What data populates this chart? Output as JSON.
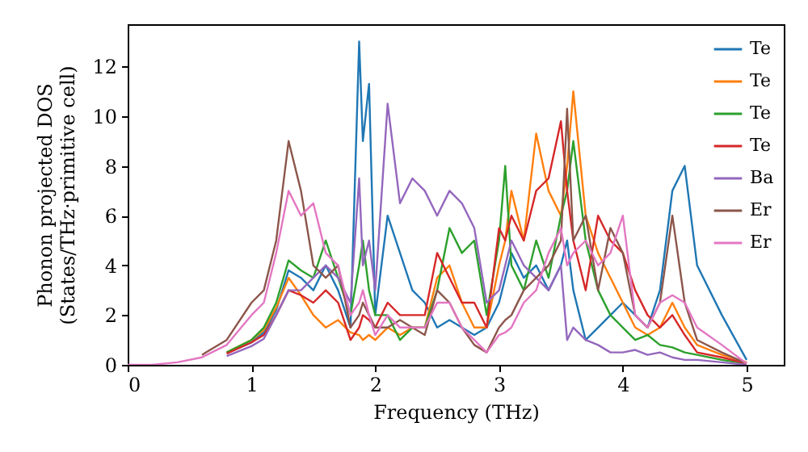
{
  "chart_data": {
    "type": "line",
    "xlabel": "Frequency (THz)",
    "ylabel": "Phonon projected DOS\n(States/THz·primitive cell)",
    "xlim": [
      0,
      5.3
    ],
    "ylim": [
      0,
      13.7
    ],
    "xticks": [
      0,
      1,
      2,
      3,
      4,
      5
    ],
    "yticks": [
      0,
      2,
      4,
      6,
      8,
      10,
      12
    ],
    "legend": "top right",
    "x": [
      0,
      0.2,
      0.4,
      0.6,
      0.8,
      1.0,
      1.1,
      1.2,
      1.3,
      1.4,
      1.5,
      1.6,
      1.7,
      1.8,
      1.87,
      1.9,
      1.95,
      2.0,
      2.1,
      2.2,
      2.3,
      2.4,
      2.5,
      2.6,
      2.7,
      2.8,
      2.9,
      3.0,
      3.05,
      3.1,
      3.2,
      3.3,
      3.4,
      3.5,
      3.55,
      3.6,
      3.7,
      3.8,
      3.9,
      4.0,
      4.1,
      4.2,
      4.3,
      4.4,
      4.5,
      4.6,
      4.8,
      5.0
    ],
    "series": [
      {
        "name": "Te",
        "color": "#1f77b4",
        "values": [
          null,
          null,
          null,
          null,
          0.5,
          0.9,
          1.3,
          2.2,
          3.8,
          3.5,
          3,
          4,
          3,
          1.5,
          13,
          9,
          11.3,
          2,
          6,
          4.5,
          3,
          2.5,
          1.5,
          1.8,
          1.5,
          1.2,
          1.5,
          2.5,
          3.5,
          4.5,
          3.5,
          4,
          3,
          4,
          5,
          3,
          1,
          1.5,
          2,
          2.5,
          2,
          1.5,
          3,
          7,
          8,
          4,
          2,
          0.2
        ]
      },
      {
        "name": "Te",
        "color": "#ff7f0e",
        "values": [
          null,
          null,
          null,
          null,
          0.5,
          1,
          1.4,
          2.3,
          3.5,
          2.8,
          2,
          1.5,
          1.8,
          1.3,
          1.2,
          1,
          1.2,
          1,
          1.5,
          1.2,
          1.5,
          1.5,
          3.5,
          4,
          2.5,
          1.5,
          1.5,
          4,
          5,
          7,
          5,
          9.3,
          7,
          6,
          8,
          11,
          6,
          4.5,
          3.5,
          2.5,
          1.5,
          1.2,
          1.5,
          2.5,
          1.5,
          0.8,
          0.4,
          0.1
        ]
      },
      {
        "name": "Te",
        "color": "#2ca02c",
        "values": [
          null,
          null,
          null,
          null,
          0.5,
          1,
          1.5,
          2.5,
          4.2,
          3.8,
          3.5,
          5,
          3.5,
          2,
          4,
          5,
          3,
          2,
          2,
          1,
          1.5,
          1.5,
          3,
          5.5,
          4.5,
          5,
          2,
          5,
          8,
          4,
          3,
          5,
          3.5,
          6,
          7,
          9,
          5,
          3,
          2,
          1.5,
          1,
          1.2,
          0.8,
          0.7,
          0.5,
          0.4,
          0.2,
          0.05
        ]
      },
      {
        "name": "Te",
        "color": "#d62728",
        "values": [
          null,
          null,
          null,
          null,
          0.45,
          0.9,
          1.2,
          2,
          3,
          2.8,
          2.5,
          3,
          2.5,
          1,
          1.5,
          2,
          1.8,
          1.5,
          2.5,
          2,
          2,
          2,
          4.5,
          3.5,
          2.5,
          2.5,
          1.5,
          5.5,
          5,
          6,
          5,
          7,
          7.5,
          9.8,
          7,
          5,
          3,
          6,
          5,
          4.5,
          3,
          2,
          1.5,
          2,
          1.2,
          0.5,
          0.3,
          0.05
        ]
      },
      {
        "name": "Ba",
        "color": "#9467bd",
        "values": [
          null,
          null,
          null,
          null,
          0.35,
          0.75,
          1.05,
          2,
          3,
          3,
          3.5,
          4,
          3.5,
          2.5,
          7.5,
          4,
          5,
          3,
          10.5,
          6.5,
          7.5,
          7,
          6,
          7,
          6.5,
          5.5,
          2.5,
          3,
          4,
          5,
          4,
          3.5,
          3,
          4,
          1,
          1.5,
          1,
          0.8,
          0.5,
          0.5,
          0.6,
          0.4,
          0.5,
          0.3,
          0.2,
          0.2,
          0.1,
          0
        ]
      },
      {
        "name": "Er",
        "color": "#8c564b",
        "values": [
          null,
          null,
          null,
          0.4,
          1,
          2.5,
          3,
          5,
          9,
          7,
          4,
          3.5,
          4,
          1.5,
          2,
          2.5,
          2,
          1.5,
          1.5,
          1.8,
          1.5,
          1.2,
          3,
          2.5,
          1.5,
          0.8,
          0.5,
          1.5,
          1.8,
          2,
          3,
          3.5,
          4,
          5,
          10.3,
          5,
          6,
          3,
          5.5,
          4.5,
          2,
          1.5,
          2.5,
          6,
          2.5,
          1,
          0.5,
          0.05
        ]
      },
      {
        "name": "Er",
        "color": "#e377c2",
        "values": [
          0,
          0,
          0.1,
          0.3,
          0.8,
          2,
          2.5,
          4.5,
          7,
          6,
          6.5,
          4.5,
          4,
          2,
          2.5,
          3,
          2,
          1.2,
          2,
          1.5,
          1.5,
          1.5,
          2.5,
          2.5,
          1.5,
          1,
          0.5,
          1.2,
          1.3,
          1.5,
          2.5,
          3,
          4.5,
          5.5,
          4,
          4.5,
          5,
          4,
          4.5,
          6,
          2,
          1.5,
          2.5,
          2.8,
          2.5,
          1.5,
          0.8,
          0.05
        ]
      }
    ]
  }
}
